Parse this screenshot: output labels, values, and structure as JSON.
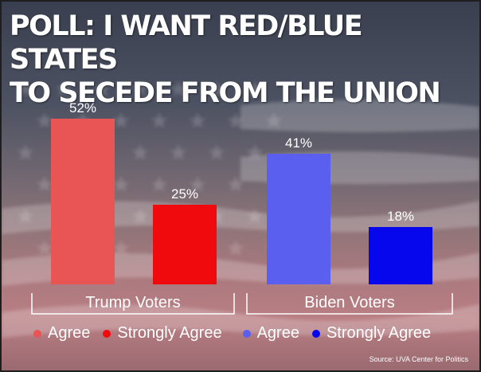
{
  "title": "POLL: I WANT RED/BLUE STATES\nTO SECEDE FROM THE UNION",
  "source": "Source: UVA Center for Politics",
  "chart_data": {
    "type": "bar",
    "categories": [
      "Trump Voters",
      "Biden Voters"
    ],
    "series": [
      {
        "name": "Agree",
        "values": [
          52,
          41
        ],
        "colors": [
          "#e95455",
          "#5a5ff0"
        ]
      },
      {
        "name": "Strongly Agree",
        "values": [
          25,
          18
        ],
        "colors": [
          "#f00a0e",
          "#0707ee"
        ]
      }
    ],
    "value_labels": [
      [
        "52%",
        "41%"
      ],
      [
        "25%",
        "18%"
      ]
    ],
    "ylim": [
      0,
      60
    ],
    "grid": false,
    "legend_position": "bottom"
  },
  "legend": [
    {
      "label": "Agree",
      "color": "#e95455"
    },
    {
      "label": "Strongly Agree",
      "color": "#f00a0e"
    },
    {
      "label": "Agree",
      "color": "#5a5ff0"
    },
    {
      "label": "Strongly Agree",
      "color": "#0707ee"
    }
  ]
}
